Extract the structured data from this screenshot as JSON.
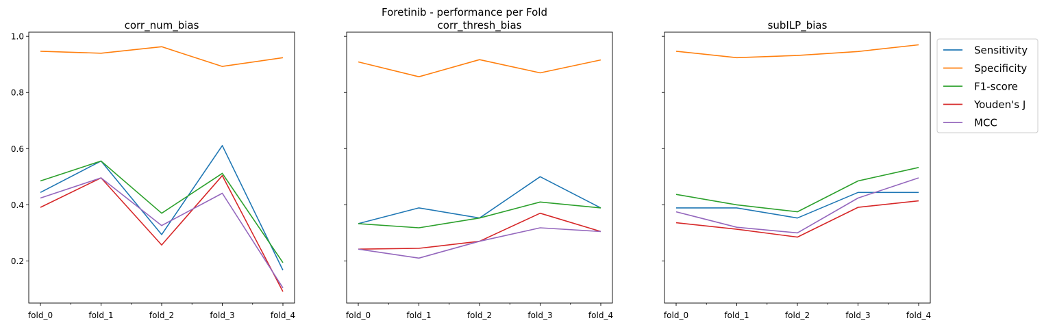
{
  "figure": {
    "suptitle": "Foretinib - performance per Fold"
  },
  "chart_data": [
    {
      "type": "line",
      "title": "corr_num_bias",
      "categories": [
        "fold_0",
        "fold_1",
        "fold_2",
        "fold_3",
        "fold_4"
      ],
      "ylim": [
        0.05,
        1.015
      ],
      "yticks": [
        "0.2",
        "0.4",
        "0.6",
        "0.8",
        "1.0"
      ],
      "series": [
        {
          "name": "Sensitivity",
          "values": [
            0.444,
            0.556,
            0.294,
            0.611,
            0.167
          ]
        },
        {
          "name": "Specificity",
          "values": [
            0.947,
            0.94,
            0.963,
            0.893,
            0.924
          ]
        },
        {
          "name": "F1-score",
          "values": [
            0.485,
            0.556,
            0.37,
            0.512,
            0.194
          ]
        },
        {
          "name": "Youden's J",
          "values": [
            0.391,
            0.496,
            0.257,
            0.504,
            0.091
          ]
        },
        {
          "name": "MCC",
          "values": [
            0.424,
            0.496,
            0.326,
            0.441,
            0.104
          ]
        }
      ]
    },
    {
      "type": "line",
      "title": "corr_thresh_bias",
      "categories": [
        "fold_0",
        "fold_1",
        "fold_2",
        "fold_3",
        "fold_4"
      ],
      "ylim": [
        0.05,
        1.015
      ],
      "series": [
        {
          "name": "Sensitivity",
          "values": [
            0.333,
            0.389,
            0.353,
            0.5,
            0.389
          ]
        },
        {
          "name": "Specificity",
          "values": [
            0.909,
            0.856,
            0.917,
            0.87,
            0.916
          ]
        },
        {
          "name": "F1-score",
          "values": [
            0.333,
            0.318,
            0.353,
            0.41,
            0.389
          ]
        },
        {
          "name": "Youden's J",
          "values": [
            0.242,
            0.245,
            0.27,
            0.37,
            0.305
          ]
        },
        {
          "name": "MCC",
          "values": [
            0.242,
            0.21,
            0.27,
            0.318,
            0.305
          ]
        }
      ]
    },
    {
      "type": "line",
      "title": "subILP_bias",
      "categories": [
        "fold_0",
        "fold_1",
        "fold_2",
        "fold_3",
        "fold_4"
      ],
      "ylim": [
        0.05,
        1.015
      ],
      "legend": "outside right, top",
      "series": [
        {
          "name": "Sensitivity",
          "values": [
            0.389,
            0.389,
            0.353,
            0.444,
            0.444
          ]
        },
        {
          "name": "Specificity",
          "values": [
            0.947,
            0.924,
            0.932,
            0.946,
            0.97
          ]
        },
        {
          "name": "F1-score",
          "values": [
            0.437,
            0.4,
            0.375,
            0.485,
            0.533
          ]
        },
        {
          "name": "Youden's J",
          "values": [
            0.336,
            0.313,
            0.285,
            0.391,
            0.414
          ]
        },
        {
          "name": "MCC",
          "values": [
            0.375,
            0.32,
            0.3,
            0.424,
            0.496
          ]
        }
      ]
    }
  ],
  "legend": {
    "entries": [
      "Sensitivity",
      "Specificity",
      "F1-score",
      "Youden's J",
      "MCC"
    ],
    "colors": [
      "#1f77b4",
      "#ff7f0e",
      "#2ca02c",
      "#d62728",
      "#9467bd"
    ]
  }
}
